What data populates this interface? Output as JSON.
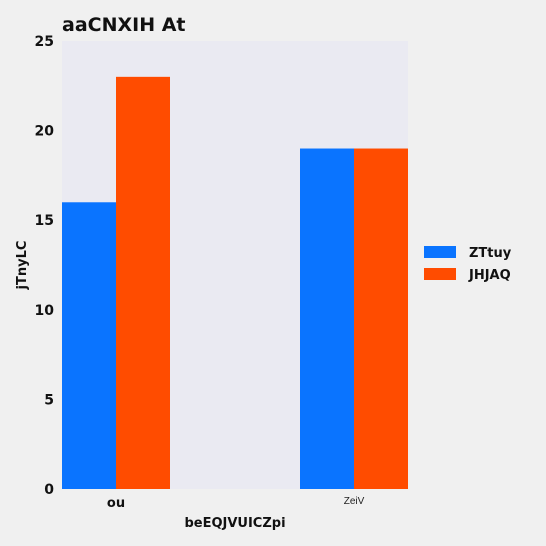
{
  "chart_data": {
    "type": "bar",
    "title": "aaCNXIH At",
    "xlabel": "beEQJVUICZpi",
    "ylabel": "jTnyLC",
    "categories": [
      "ou",
      "ZeiV"
    ],
    "series": [
      {
        "name": "ZTtuy",
        "values": [
          16,
          19
        ],
        "color": "#0a74ff"
      },
      {
        "name": "JHJAQ",
        "values": [
          23,
          19
        ],
        "color": "#ff4c00"
      }
    ],
    "ylim": [
      0,
      25
    ],
    "yticks": [
      0,
      5,
      10,
      15,
      20,
      25
    ],
    "grid": false,
    "legend_position": "right",
    "plot_background": "#eaeaf2"
  }
}
